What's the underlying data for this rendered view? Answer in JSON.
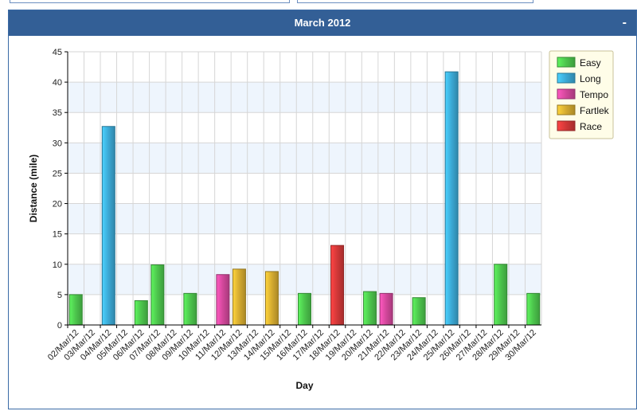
{
  "panel": {
    "title": "March 2012",
    "collapse_label": "-"
  },
  "colors": {
    "Easy": "#4cc44c",
    "Long": "#3ba8d4",
    "Tempo": "#d1479a",
    "Fartlek": "#d4aa30",
    "Race": "#d03737",
    "header": "#335f96",
    "band": "#eef5fd"
  },
  "chart_data": {
    "type": "bar",
    "xlabel": "Day",
    "ylabel": "Distance (mile)",
    "ylim": [
      0,
      45
    ],
    "yticks": [
      0,
      5,
      10,
      15,
      20,
      25,
      30,
      35,
      40,
      45
    ],
    "legend_position": "top-right",
    "grid": true,
    "categories": [
      "02/Mar/12",
      "03/Mar/12",
      "04/Mar/12",
      "05/Mar/12",
      "06/Mar/12",
      "07/Mar/12",
      "08/Mar/12",
      "09/Mar/12",
      "10/Mar/12",
      "11/Mar/12",
      "12/Mar/12",
      "13/Mar/12",
      "14/Mar/12",
      "15/Mar/12",
      "16/Mar/12",
      "17/Mar/12",
      "18/Mar/12",
      "19/Mar/12",
      "20/Mar/12",
      "21/Mar/12",
      "22/Mar/12",
      "23/Mar/12",
      "24/Mar/12",
      "25/Mar/12",
      "26/Mar/12",
      "27/Mar/12",
      "28/Mar/12",
      "29/Mar/12",
      "30/Mar/12"
    ],
    "series": [
      {
        "name": "Easy",
        "values": [
          5,
          null,
          null,
          null,
          4,
          9.9,
          null,
          5.2,
          null,
          null,
          null,
          null,
          null,
          null,
          5.2,
          null,
          null,
          null,
          5.5,
          null,
          null,
          4.5,
          null,
          null,
          null,
          null,
          10,
          null,
          5.2
        ]
      },
      {
        "name": "Long",
        "values": [
          null,
          null,
          32.7,
          null,
          null,
          null,
          null,
          null,
          null,
          null,
          null,
          null,
          null,
          null,
          null,
          null,
          null,
          null,
          null,
          null,
          null,
          null,
          null,
          41.7,
          null,
          null,
          null,
          null,
          null
        ]
      },
      {
        "name": "Tempo",
        "values": [
          null,
          null,
          null,
          null,
          null,
          null,
          null,
          null,
          null,
          8.3,
          null,
          null,
          null,
          null,
          null,
          null,
          null,
          null,
          null,
          5.2,
          null,
          null,
          null,
          null,
          null,
          null,
          null,
          null,
          null
        ]
      },
      {
        "name": "Fartlek",
        "values": [
          null,
          null,
          null,
          null,
          null,
          null,
          null,
          null,
          null,
          null,
          9.2,
          null,
          8.8,
          null,
          null,
          null,
          null,
          null,
          null,
          null,
          null,
          null,
          null,
          null,
          null,
          null,
          null,
          null,
          null
        ]
      },
      {
        "name": "Race",
        "values": [
          null,
          null,
          null,
          null,
          null,
          null,
          null,
          null,
          null,
          null,
          null,
          null,
          null,
          null,
          null,
          null,
          13.1,
          null,
          null,
          null,
          null,
          null,
          null,
          null,
          null,
          null,
          null,
          null,
          null
        ]
      }
    ]
  }
}
